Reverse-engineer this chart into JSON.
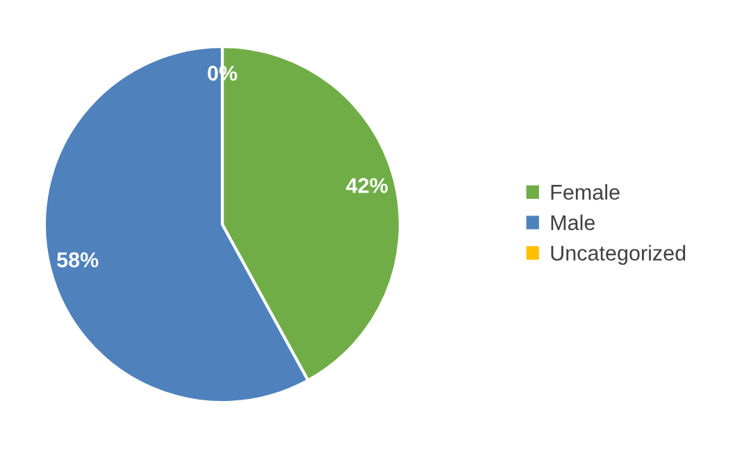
{
  "chart_data": {
    "type": "pie",
    "categories": [
      "Female",
      "Male",
      "Uncategorized"
    ],
    "values": [
      42,
      58,
      0
    ],
    "colors": [
      "#70ad47",
      "#4f81bd",
      "#ffc000"
    ],
    "value_labels": [
      "42%",
      "58%",
      "0%"
    ],
    "legend": "right"
  }
}
